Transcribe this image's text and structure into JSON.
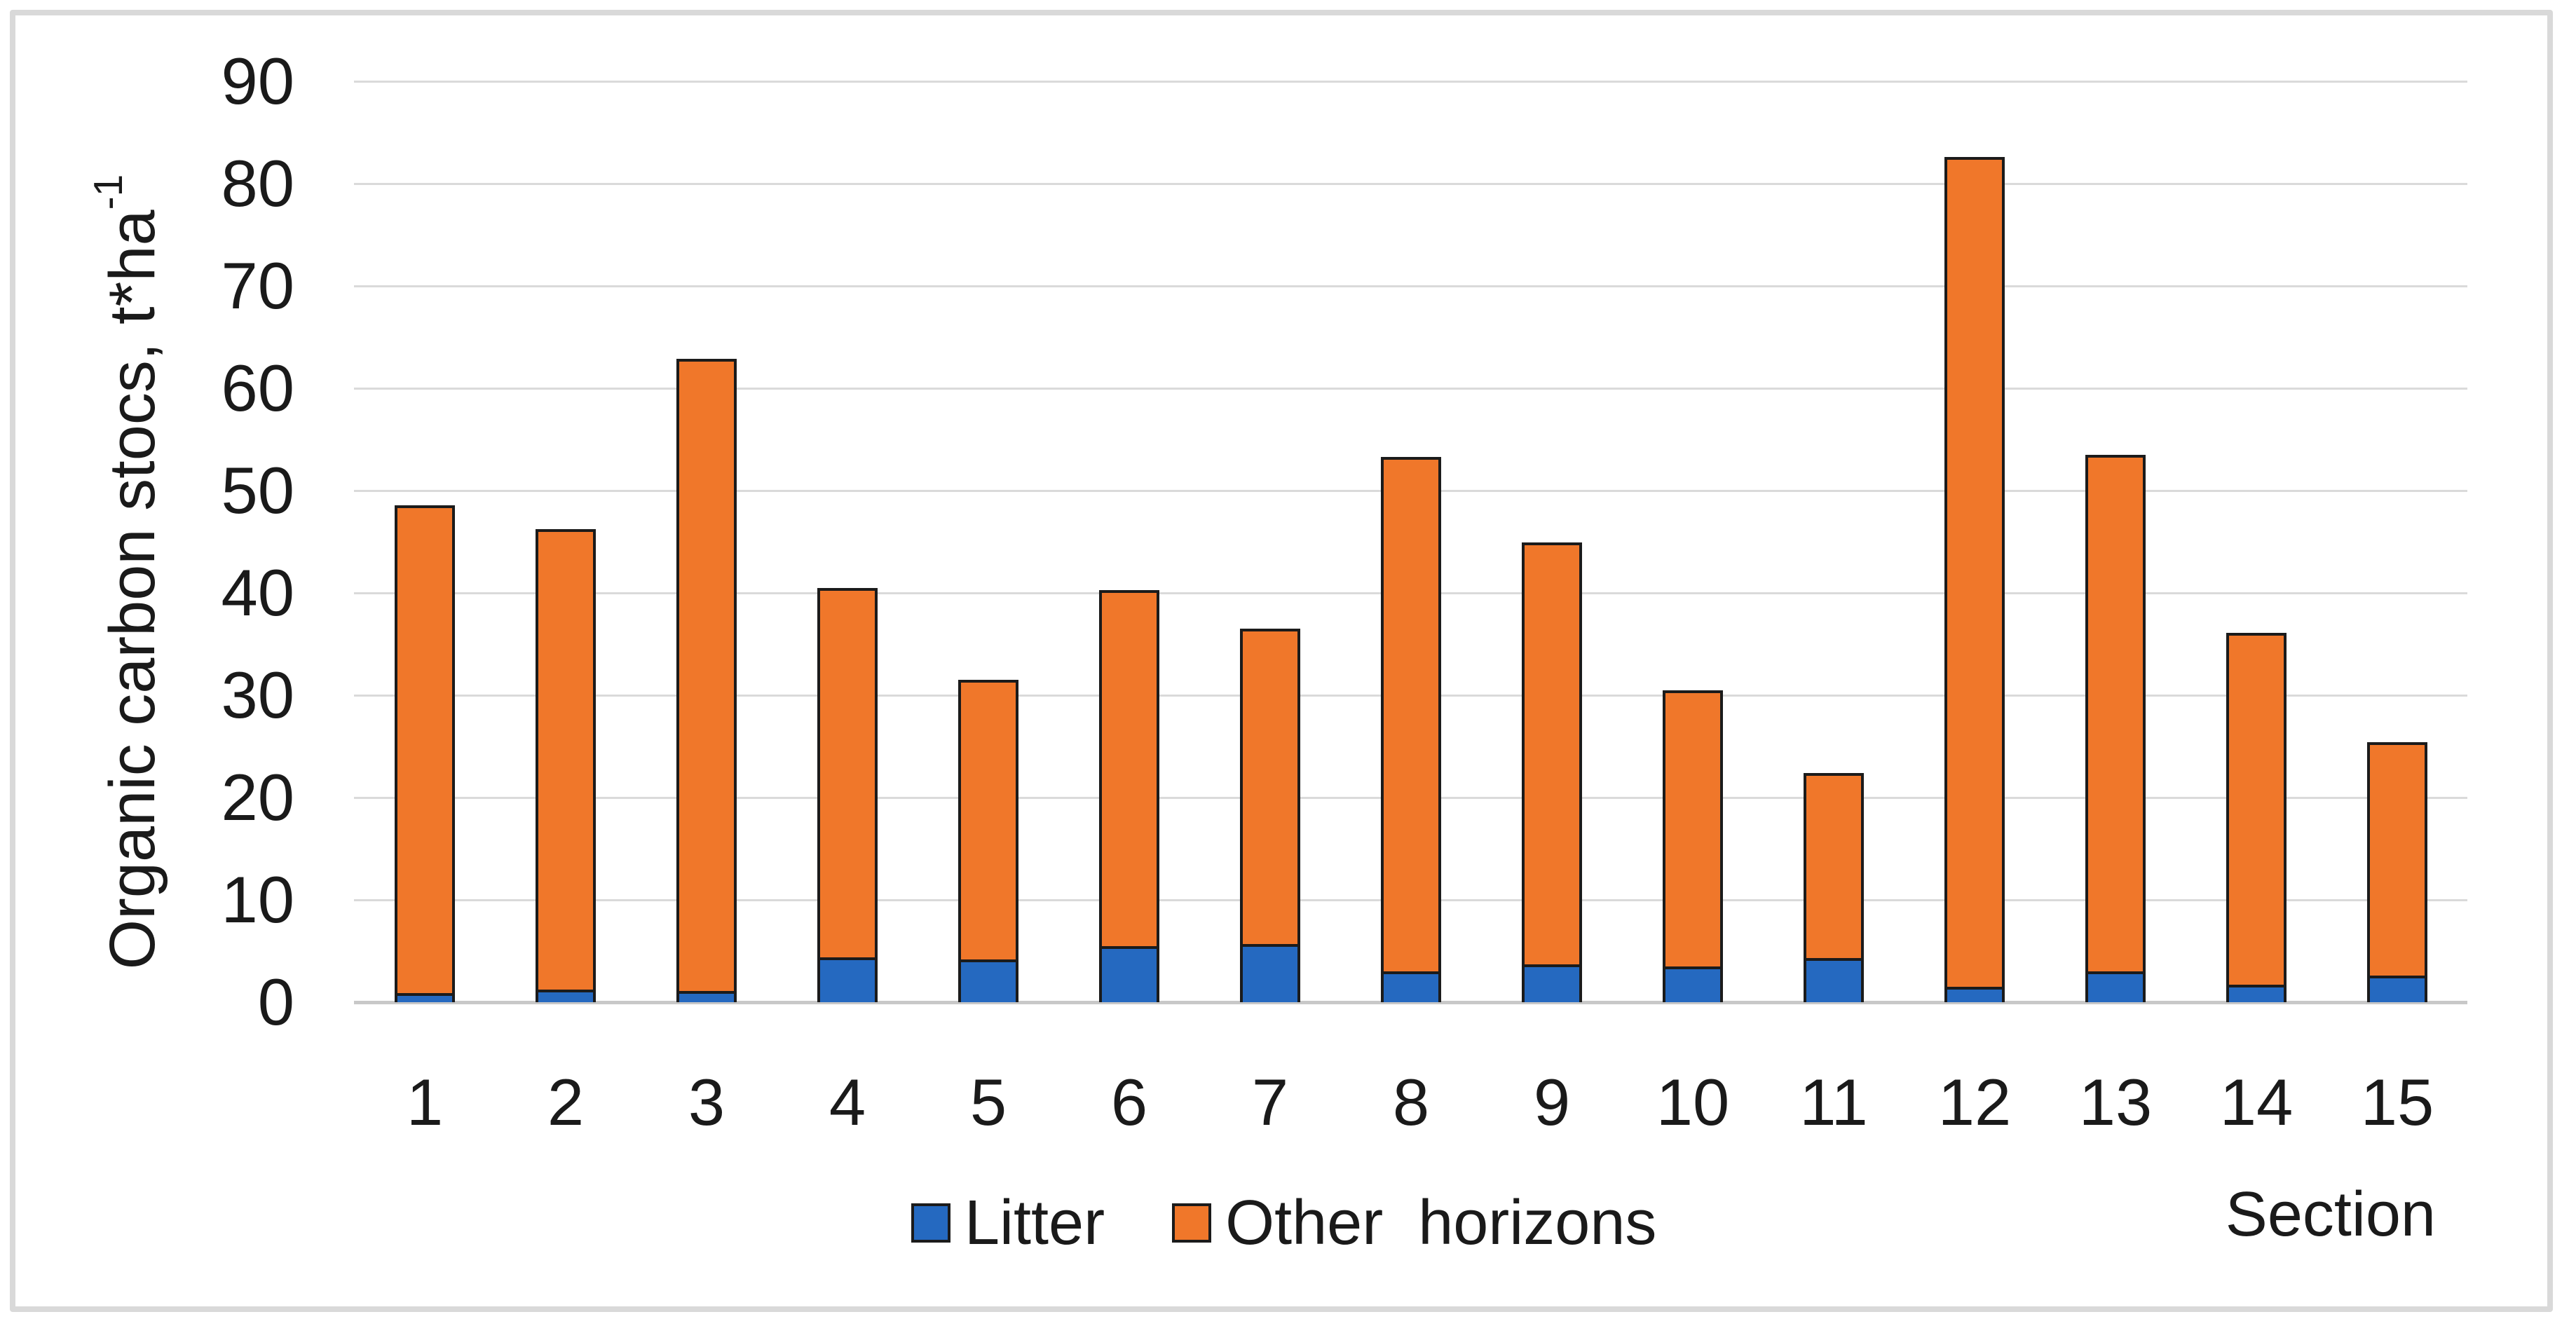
{
  "chart_data": {
    "type": "bar",
    "stacked": true,
    "categories": [
      "1",
      "2",
      "3",
      "4",
      "5",
      "6",
      "7",
      "8",
      "9",
      "10",
      "11",
      "12",
      "13",
      "14",
      "15"
    ],
    "series": [
      {
        "name": "Litter",
        "color": "#2569c0",
        "values": [
          0.9,
          1.2,
          1.1,
          4.4,
          4.2,
          5.5,
          5.7,
          3.0,
          3.7,
          3.5,
          4.3,
          1.5,
          3.0,
          1.7,
          2.6
        ]
      },
      {
        "name": "Other  horizons",
        "color": "#f0772a",
        "values": [
          47.7,
          45.0,
          61.8,
          36.1,
          27.3,
          34.8,
          30.8,
          50.3,
          41.2,
          27.0,
          18.1,
          81.1,
          50.5,
          34.4,
          22.8
        ]
      }
    ],
    "totals": [
      48.6,
      46.2,
      62.9,
      40.5,
      31.5,
      40.3,
      36.5,
      53.3,
      44.9,
      30.5,
      22.4,
      82.6,
      53.5,
      36.1,
      25.4
    ],
    "ylabel_main": "Organic carbon stocs, t*ha",
    "ylabel_superscript": "-1",
    "xlabel": "Section",
    "ylim": [
      0,
      90
    ],
    "yticks": [
      0,
      10,
      20,
      30,
      40,
      50,
      60,
      70,
      80,
      90
    ],
    "grid": true,
    "legend_position": "bottom",
    "colors": {
      "bar_border": "#1b1b1b",
      "gridline": "#dadada",
      "axis_line": "#c8c8c8",
      "frame_border": "#d9d9d9",
      "text": "#1a1a1a"
    }
  }
}
